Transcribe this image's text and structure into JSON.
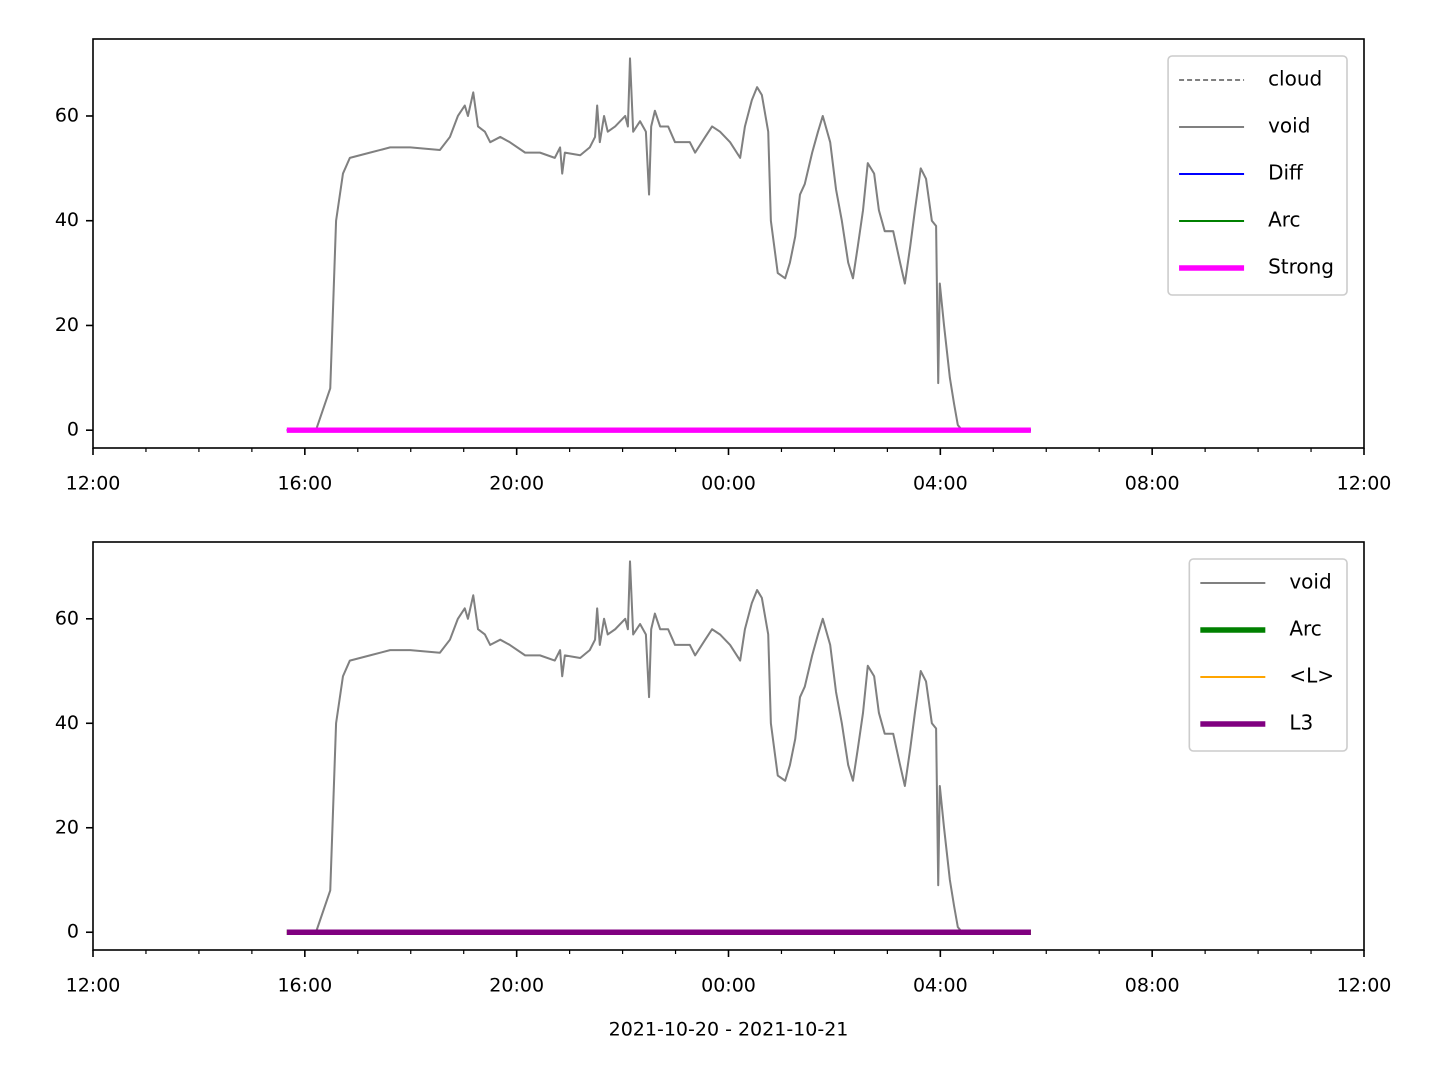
{
  "chart_data": [
    {
      "type": "line",
      "xlim": [
        12,
        36
      ],
      "xticks": [
        {
          "value": 12,
          "label": "12:00"
        },
        {
          "value": 16,
          "label": "16:00"
        },
        {
          "value": 20,
          "label": "20:00"
        },
        {
          "value": 24,
          "label": "00:00"
        },
        {
          "value": 28,
          "label": "04:00"
        },
        {
          "value": 32,
          "label": "08:00"
        },
        {
          "value": 36,
          "label": "12:00"
        }
      ],
      "xminorticks": [
        13,
        14,
        15,
        17,
        18,
        19,
        21,
        22,
        23,
        25,
        26,
        27,
        29,
        30,
        31,
        33,
        34,
        35
      ],
      "ylim": [
        -3.4,
        74.7
      ],
      "yticks": [
        0,
        20,
        40,
        60
      ],
      "legend": "upper right",
      "series": [
        {
          "name": "cloud",
          "color": "#808080",
          "linestyle": "dashed",
          "linewidth": 1.5,
          "x": [
            15.66,
            29.71
          ],
          "values": [
            0,
            0
          ]
        },
        {
          "name": "void",
          "color": "#808080",
          "linestyle": "solid",
          "linewidth": 1.5,
          "x": [
            16.21,
            16.48,
            16.59,
            16.72,
            16.85,
            17.23,
            17.61,
            17.99,
            18.55,
            18.74,
            18.89,
            19.02,
            19.08,
            19.18,
            19.27,
            19.4,
            19.5,
            19.69,
            19.87,
            20.16,
            20.44,
            20.72,
            20.82,
            20.86,
            20.91,
            21.2,
            21.38,
            21.48,
            21.52,
            21.57,
            21.65,
            21.72,
            21.86,
            22.05,
            22.1,
            22.14,
            22.2,
            22.33,
            22.44,
            22.5,
            22.54,
            22.61,
            22.71,
            22.86,
            22.99,
            23.27,
            23.37,
            23.56,
            23.69,
            23.84,
            24.03,
            24.22,
            24.31,
            24.44,
            24.54,
            24.63,
            24.75,
            24.8,
            24.93,
            25.07,
            25.16,
            25.26,
            25.35,
            25.44,
            25.58,
            25.69,
            25.78,
            25.92,
            26.03,
            26.14,
            26.26,
            26.35,
            26.44,
            26.54,
            26.63,
            26.75,
            26.84,
            26.95,
            27.11,
            27.24,
            27.33,
            27.43,
            27.52,
            27.63,
            27.73,
            27.84,
            27.92,
            27.96,
            27.99,
            28.07,
            28.18,
            28.26,
            28.33,
            28.41
          ],
          "values": [
            0,
            8,
            40,
            49,
            52,
            53,
            54,
            54,
            53.5,
            56,
            60,
            62,
            60,
            64.5,
            58,
            57,
            55,
            56,
            55,
            53,
            53,
            52,
            54,
            49,
            53,
            52.5,
            54,
            56,
            62,
            55,
            60,
            57,
            58,
            60,
            58,
            71,
            57,
            59,
            57,
            45,
            58,
            61,
            58,
            58,
            55,
            55,
            53,
            56,
            58,
            57,
            55,
            52,
            58,
            63,
            65.5,
            64,
            57,
            40,
            30,
            29,
            32,
            37,
            45,
            47,
            53,
            57,
            60,
            55,
            46,
            40,
            32,
            29,
            35,
            42,
            51,
            49,
            42,
            38,
            38,
            32,
            28,
            35,
            42,
            50,
            48,
            40,
            39,
            9,
            28,
            20,
            10,
            5,
            1,
            0
          ]
        },
        {
          "name": "Diff",
          "color": "#0000ff",
          "linestyle": "solid",
          "linewidth": 1.5,
          "x": [
            15.66,
            29.71
          ],
          "values": [
            0,
            0
          ]
        },
        {
          "name": "Arc",
          "color": "#008000",
          "linestyle": "solid",
          "linewidth": 1.5,
          "x": [
            15.66,
            29.71
          ],
          "values": [
            0,
            0
          ]
        },
        {
          "name": "Strong",
          "color": "#ff00ff",
          "linestyle": "solid",
          "linewidth": 4,
          "x": [
            15.66,
            29.71
          ],
          "values": [
            0,
            0
          ]
        }
      ]
    },
    {
      "type": "line",
      "xlim": [
        12,
        36
      ],
      "xticks": [
        {
          "value": 12,
          "label": "12:00"
        },
        {
          "value": 16,
          "label": "16:00"
        },
        {
          "value": 20,
          "label": "20:00"
        },
        {
          "value": 24,
          "label": "00:00"
        },
        {
          "value": 28,
          "label": "04:00"
        },
        {
          "value": 32,
          "label": "08:00"
        },
        {
          "value": 36,
          "label": "12:00"
        }
      ],
      "xminorticks": [
        13,
        14,
        15,
        17,
        18,
        19,
        21,
        22,
        23,
        25,
        26,
        27,
        29,
        30,
        31,
        33,
        34,
        35
      ],
      "ylim": [
        -3.4,
        74.7
      ],
      "yticks": [
        0,
        20,
        40,
        60
      ],
      "xlabel": "2021-10-20 - 2021-10-21",
      "legend": "upper right",
      "series": [
        {
          "name": "void",
          "color": "#808080",
          "linestyle": "solid",
          "linewidth": 1.5,
          "x": [
            16.21,
            16.48,
            16.59,
            16.72,
            16.85,
            17.23,
            17.61,
            17.99,
            18.55,
            18.74,
            18.89,
            19.02,
            19.08,
            19.18,
            19.27,
            19.4,
            19.5,
            19.69,
            19.87,
            20.16,
            20.44,
            20.72,
            20.82,
            20.86,
            20.91,
            21.2,
            21.38,
            21.48,
            21.52,
            21.57,
            21.65,
            21.72,
            21.86,
            22.05,
            22.1,
            22.14,
            22.2,
            22.33,
            22.44,
            22.5,
            22.54,
            22.61,
            22.71,
            22.86,
            22.99,
            23.27,
            23.37,
            23.56,
            23.69,
            23.84,
            24.03,
            24.22,
            24.31,
            24.44,
            24.54,
            24.63,
            24.75,
            24.8,
            24.93,
            25.07,
            25.16,
            25.26,
            25.35,
            25.44,
            25.58,
            25.69,
            25.78,
            25.92,
            26.03,
            26.14,
            26.26,
            26.35,
            26.44,
            26.54,
            26.63,
            26.75,
            26.84,
            26.95,
            27.11,
            27.24,
            27.33,
            27.43,
            27.52,
            27.63,
            27.73,
            27.84,
            27.92,
            27.96,
            27.99,
            28.07,
            28.18,
            28.26,
            28.33,
            28.41
          ],
          "values": [
            0,
            8,
            40,
            49,
            52,
            53,
            54,
            54,
            53.5,
            56,
            60,
            62,
            60,
            64.5,
            58,
            57,
            55,
            56,
            55,
            53,
            53,
            52,
            54,
            49,
            53,
            52.5,
            54,
            56,
            62,
            55,
            60,
            57,
            58,
            60,
            58,
            71,
            57,
            59,
            57,
            45,
            58,
            61,
            58,
            58,
            55,
            55,
            53,
            56,
            58,
            57,
            55,
            52,
            58,
            63,
            65.5,
            64,
            57,
            40,
            30,
            29,
            32,
            37,
            45,
            47,
            53,
            57,
            60,
            55,
            46,
            40,
            32,
            29,
            35,
            42,
            51,
            49,
            42,
            38,
            38,
            32,
            28,
            35,
            42,
            50,
            48,
            40,
            39,
            9,
            28,
            20,
            10,
            5,
            1,
            0
          ]
        },
        {
          "name": "Arc",
          "color": "#008000",
          "linestyle": "solid",
          "linewidth": 4,
          "x": [
            15.66,
            29.71
          ],
          "values": [
            0,
            0
          ]
        },
        {
          "name": "<L>",
          "color": "#ffa500",
          "linestyle": "solid",
          "linewidth": 1.5,
          "x": [
            15.66,
            29.71
          ],
          "values": [
            0,
            0
          ]
        },
        {
          "name": "L3",
          "color": "#800080",
          "linestyle": "solid",
          "linewidth": 4,
          "x": [
            15.66,
            29.71
          ],
          "values": [
            0,
            0
          ]
        }
      ]
    }
  ]
}
